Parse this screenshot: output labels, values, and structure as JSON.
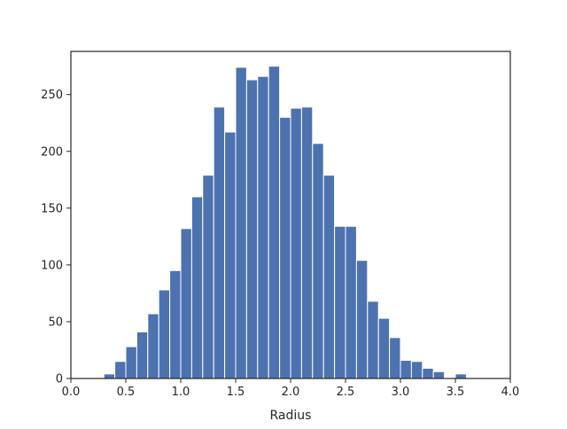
{
  "chart_data": {
    "type": "bar",
    "title": "",
    "xlabel": "Radius",
    "ylabel": "",
    "xlim": [
      0.0,
      4.0
    ],
    "ylim": [
      0,
      288
    ],
    "x_ticks": [
      "0.0",
      "0.5",
      "1.0",
      "1.5",
      "2.0",
      "2.5",
      "3.0",
      "3.5",
      "4.0"
    ],
    "y_ticks": [
      "0",
      "50",
      "100",
      "150",
      "200",
      "250"
    ],
    "grid": false,
    "bar_color": "#4c72b0",
    "bins": [
      {
        "x0": 0.3,
        "x1": 0.4,
        "count": 4
      },
      {
        "x0": 0.4,
        "x1": 0.5,
        "count": 15
      },
      {
        "x0": 0.5,
        "x1": 0.6,
        "count": 28
      },
      {
        "x0": 0.6,
        "x1": 0.7,
        "count": 41
      },
      {
        "x0": 0.7,
        "x1": 0.8,
        "count": 57
      },
      {
        "x0": 0.8,
        "x1": 0.9,
        "count": 78
      },
      {
        "x0": 0.9,
        "x1": 1.0,
        "count": 95
      },
      {
        "x0": 1.0,
        "x1": 1.1,
        "count": 132
      },
      {
        "x0": 1.1,
        "x1": 1.2,
        "count": 160
      },
      {
        "x0": 1.2,
        "x1": 1.3,
        "count": 179
      },
      {
        "x0": 1.3,
        "x1": 1.4,
        "count": 239
      },
      {
        "x0": 1.4,
        "x1": 1.5,
        "count": 217
      },
      {
        "x0": 1.5,
        "x1": 1.6,
        "count": 274
      },
      {
        "x0": 1.6,
        "x1": 1.7,
        "count": 263
      },
      {
        "x0": 1.7,
        "x1": 1.8,
        "count": 266
      },
      {
        "x0": 1.8,
        "x1": 1.9,
        "count": 275
      },
      {
        "x0": 1.9,
        "x1": 2.0,
        "count": 230
      },
      {
        "x0": 2.0,
        "x1": 2.1,
        "count": 238
      },
      {
        "x0": 2.1,
        "x1": 2.2,
        "count": 239
      },
      {
        "x0": 2.2,
        "x1": 2.3,
        "count": 207
      },
      {
        "x0": 2.3,
        "x1": 2.4,
        "count": 179
      },
      {
        "x0": 2.4,
        "x1": 2.5,
        "count": 134
      },
      {
        "x0": 2.5,
        "x1": 2.6,
        "count": 134
      },
      {
        "x0": 2.6,
        "x1": 2.7,
        "count": 104
      },
      {
        "x0": 2.7,
        "x1": 2.8,
        "count": 68
      },
      {
        "x0": 2.8,
        "x1": 2.9,
        "count": 53
      },
      {
        "x0": 2.9,
        "x1": 3.0,
        "count": 36
      },
      {
        "x0": 3.0,
        "x1": 3.1,
        "count": 16
      },
      {
        "x0": 3.1,
        "x1": 3.2,
        "count": 15
      },
      {
        "x0": 3.2,
        "x1": 3.3,
        "count": 9
      },
      {
        "x0": 3.3,
        "x1": 3.4,
        "count": 6
      },
      {
        "x0": 3.4,
        "x1": 3.5,
        "count": 0
      },
      {
        "x0": 3.5,
        "x1": 3.6,
        "count": 4
      }
    ]
  }
}
